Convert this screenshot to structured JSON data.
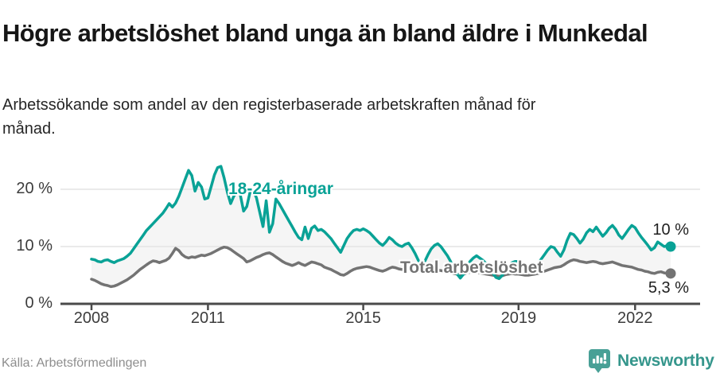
{
  "header": {
    "title": "Högre arbetslöshet bland unga än bland äldre i Munkedal",
    "subtitle": "Arbetssökande som andel av den registerbaserade arbetskraften månad för månad."
  },
  "footer": {
    "source": "Källa: Arbetsförmedlingen",
    "brand": "Newsworthy"
  },
  "colors": {
    "young": "#09a296",
    "total": "#737373",
    "grid": "#e3e3e3",
    "axis": "#4a4a4a",
    "fill": "#f5f5f5",
    "brand": "#48a096"
  },
  "chart_data": {
    "type": "line",
    "title": "Högre arbetslöshet bland unga än bland äldre i Munkedal",
    "xlabel": "",
    "ylabel": "Arbetssökande som andel av den registerbaserade arbetskraften",
    "x_unit": "month",
    "start_year": 2008,
    "end_year": 2022,
    "ylim": [
      0,
      25
    ],
    "grid": true,
    "legend_position": "inline",
    "yticks": [
      {
        "label": "0 %",
        "value": 0
      },
      {
        "label": "10 %",
        "value": 10
      },
      {
        "label": "20 %",
        "value": 20
      }
    ],
    "xticks": [
      {
        "label": "2008",
        "year": 2008
      },
      {
        "label": "2011",
        "year": 2011
      },
      {
        "label": "2015",
        "year": 2015
      },
      {
        "label": "2019",
        "year": 2019
      },
      {
        "label": "2022",
        "year": 2022
      }
    ],
    "series": [
      {
        "name": "18-24-åringar",
        "color_key": "young",
        "end_label": "10 %",
        "values": [
          7.8,
          7.7,
          7.4,
          7.3,
          7.6,
          7.7,
          7.4,
          7.2,
          7.5,
          7.7,
          7.9,
          8.3,
          8.8,
          9.6,
          10.4,
          11.2,
          12.0,
          12.8,
          13.4,
          14.0,
          14.6,
          15.2,
          15.8,
          16.6,
          17.5,
          16.9,
          17.6,
          18.8,
          20.3,
          21.8,
          23.3,
          22.4,
          19.7,
          21.2,
          20.4,
          18.3,
          18.5,
          20.5,
          22.5,
          23.8,
          24.0,
          22.0,
          19.5,
          17.5,
          18.8,
          19.6,
          19.0,
          16.2,
          17.0,
          19.5,
          19.8,
          18.5,
          16.0,
          13.5,
          18.0,
          12.5,
          14.0,
          18.3,
          17.5,
          16.5,
          15.5,
          14.5,
          13.5,
          12.5,
          11.6,
          11.2,
          13.4,
          11.4,
          13.2,
          13.6,
          12.8,
          13.0,
          12.6,
          12.0,
          11.4,
          10.6,
          9.8,
          9.0,
          10.2,
          11.4,
          12.2,
          12.8,
          13.0,
          12.8,
          13.1,
          12.8,
          12.4,
          11.8,
          11.2,
          10.6,
          10.2,
          10.8,
          11.6,
          11.2,
          10.6,
          10.2,
          10.0,
          10.4,
          10.6,
          9.8,
          8.8,
          7.6,
          6.8,
          7.4,
          8.6,
          9.6,
          10.2,
          10.5,
          10.0,
          9.2,
          8.4,
          7.4,
          6.2,
          5.2,
          4.5,
          5.2,
          6.4,
          7.4,
          8.0,
          8.4,
          8.0,
          7.6,
          7.0,
          6.2,
          5.4,
          4.6,
          4.4,
          5.0,
          6.0,
          6.8,
          7.2,
          7.4,
          7.4,
          7.0,
          6.6,
          6.2,
          6.0,
          6.4,
          7.0,
          7.8,
          8.6,
          9.4,
          10.0,
          9.8,
          9.0,
          8.3,
          9.4,
          11.1,
          12.3,
          12.1,
          11.4,
          10.6,
          11.3,
          12.4,
          13.0,
          12.6,
          13.4,
          12.6,
          11.8,
          12.4,
          13.2,
          13.7,
          13.0,
          12.0,
          11.4,
          12.2,
          13.0,
          13.7,
          13.3,
          12.4,
          11.6,
          10.9,
          10.2,
          9.4,
          9.8,
          10.8,
          10.4,
          10.0,
          10.2,
          10.0
        ]
      },
      {
        "name": "Total arbetslöshet",
        "color_key": "total",
        "end_label": "5,3 %",
        "values": [
          4.3,
          4.1,
          3.8,
          3.5,
          3.3,
          3.2,
          3.0,
          3.1,
          3.3,
          3.6,
          3.9,
          4.2,
          4.6,
          5.0,
          5.5,
          6.0,
          6.4,
          6.8,
          7.2,
          7.5,
          7.4,
          7.2,
          7.4,
          7.6,
          8.0,
          8.8,
          9.7,
          9.3,
          8.6,
          8.2,
          8.0,
          8.2,
          8.1,
          8.3,
          8.5,
          8.4,
          8.6,
          8.8,
          9.1,
          9.4,
          9.7,
          9.9,
          9.8,
          9.5,
          9.1,
          8.7,
          8.3,
          7.9,
          7.3,
          7.5,
          7.8,
          8.1,
          8.3,
          8.6,
          8.8,
          8.9,
          8.6,
          8.2,
          7.8,
          7.4,
          7.1,
          6.9,
          6.7,
          6.9,
          7.2,
          6.9,
          6.7,
          7.0,
          7.3,
          7.2,
          7.0,
          6.8,
          6.4,
          6.2,
          6.0,
          5.7,
          5.4,
          5.1,
          5.0,
          5.3,
          5.7,
          6.0,
          6.2,
          6.3,
          6.4,
          6.5,
          6.4,
          6.2,
          6.0,
          5.8,
          5.7,
          5.9,
          6.2,
          6.4,
          6.3,
          6.1,
          6.0,
          6.1,
          6.2,
          6.0,
          5.8,
          5.6,
          5.5,
          5.6,
          5.8,
          5.9,
          6.0,
          5.9,
          5.8,
          5.7,
          5.6,
          5.5,
          5.3,
          5.2,
          5.1,
          5.2,
          5.4,
          5.5,
          5.6,
          5.5,
          5.4,
          5.3,
          5.2,
          5.1,
          5.0,
          4.9,
          4.8,
          4.9,
          5.1,
          5.2,
          5.3,
          5.2,
          5.2,
          5.1,
          5.0,
          5.0,
          5.1,
          5.2,
          5.3,
          5.5,
          5.7,
          5.9,
          6.1,
          6.3,
          6.4,
          6.5,
          6.8,
          7.2,
          7.5,
          7.7,
          7.6,
          7.4,
          7.3,
          7.2,
          7.3,
          7.4,
          7.3,
          7.1,
          7.0,
          7.1,
          7.2,
          7.3,
          7.1,
          6.9,
          6.7,
          6.6,
          6.5,
          6.4,
          6.2,
          6.0,
          5.9,
          5.7,
          5.6,
          5.4,
          5.3,
          5.5,
          5.6,
          5.4,
          5.3,
          5.3
        ]
      }
    ]
  }
}
